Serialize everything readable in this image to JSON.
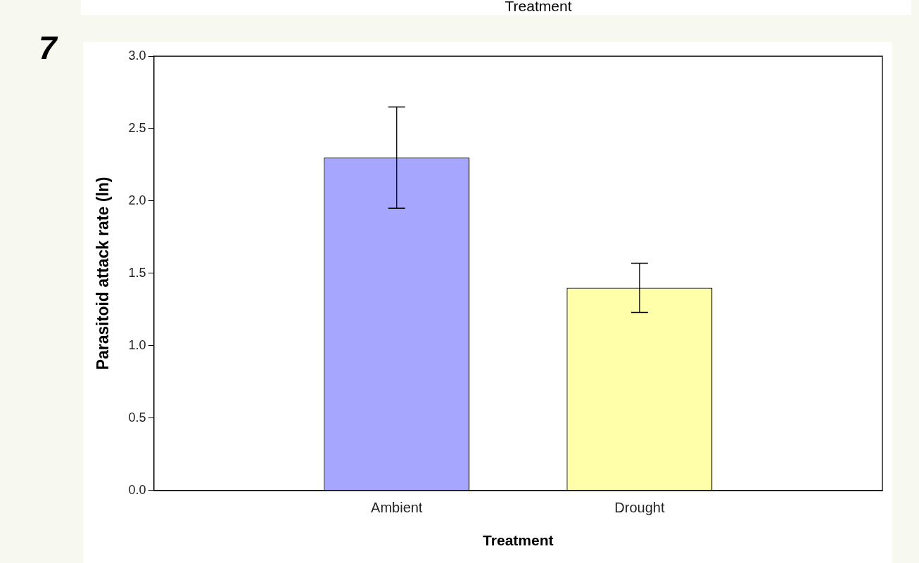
{
  "chart_data": {
    "type": "bar",
    "xlabel": "Treatment",
    "ylabel": "Parasitoid attack rate (ln)",
    "annotations": [
      "7",
      "Treatment"
    ],
    "categories": [
      "Ambient",
      "Drought"
    ],
    "series": [
      {
        "colors": [
          "#a6a6ff",
          "#ffffaa"
        ],
        "values": [
          2.3,
          1.4
        ],
        "errors": [
          [
            1.95,
            2.65
          ],
          [
            1.23,
            1.57
          ]
        ]
      }
    ],
    "ylim": [
      0,
      3
    ],
    "yticks": [
      {
        "value": 0,
        "label": "0.0"
      },
      {
        "value": 0.5,
        "label": "0.5"
      },
      {
        "value": 1,
        "label": "1.0"
      },
      {
        "value": 1.5,
        "label": "1.5"
      },
      {
        "value": 2,
        "label": "2.0"
      },
      {
        "value": 2.5,
        "label": "2.5"
      },
      {
        "value": 3,
        "label": "3.0"
      }
    ],
    "grid": false,
    "legend": false
  }
}
